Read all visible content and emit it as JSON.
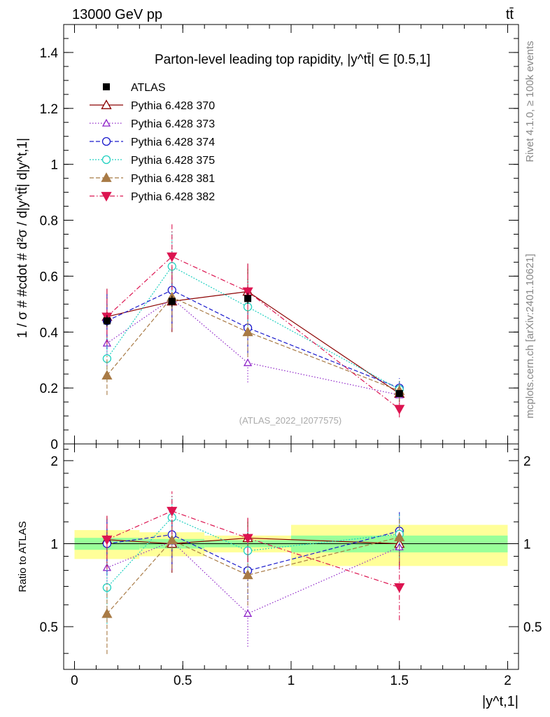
{
  "header": {
    "energy_label": "13000 GeV pp",
    "process_label": "tt̄"
  },
  "side_labels": {
    "rivet": "Rivet 4.1.0, ≥ 100k events",
    "mcplots": "mcplots.cern.ch [arXiv:2401.10621]"
  },
  "chart_data": {
    "type": "scatter",
    "title": "Parton-level leading top rapidity, |y^tt̄| ∈ [0.5,1]",
    "watermark": "(ATLAS_2022_I2077575)",
    "xlabel": "|y^t,1|",
    "ylabel": "1 / σ # #cdot # d²σ / d|y^tt̄| d|y^t,1|",
    "ratio_ylabel": "Ratio to ATLAS",
    "xlim": [
      -0.05,
      2.05
    ],
    "ylim": [
      0,
      1.5
    ],
    "ratio_ylim": [
      0.35,
      2.3
    ],
    "x_ticks": [
      "0",
      "0.5",
      "1",
      "1.5",
      "2"
    ],
    "y_ticks": [
      "0",
      "0.2",
      "0.4",
      "0.6",
      "0.8",
      "1",
      "1.2",
      "1.4"
    ],
    "ratio_ticks": [
      "0.5",
      "1",
      "2"
    ],
    "x": [
      0.15,
      0.45,
      0.8,
      1.5
    ],
    "bins": [
      [
        0,
        0.3
      ],
      [
        0.3,
        0.6
      ],
      [
        0.6,
        1.0
      ],
      [
        1.0,
        2.0
      ]
    ],
    "data": {
      "name": "ATLAS",
      "values": [
        0.44,
        0.51,
        0.52,
        0.18
      ],
      "errors": [
        0.02,
        0.02,
        0.02,
        0.01
      ]
    },
    "data_band_stat": [
      0.05,
      0.04,
      0.03,
      0.07
    ],
    "data_band_total": [
      0.12,
      0.1,
      0.07,
      0.17
    ],
    "series": [
      {
        "name": "Pythia 6.428 370",
        "color": "#8b0000",
        "marker": "triangle-open",
        "dash": "none",
        "values": [
          0.455,
          0.51,
          0.545,
          0.18
        ],
        "errors": [
          0.1,
          0.11,
          0.1,
          0.03
        ]
      },
      {
        "name": "Pythia 6.428 373",
        "color": "#8e24c8",
        "marker": "triangle-open-small",
        "dash": "1.5,2.5",
        "values": [
          0.36,
          0.52,
          0.29,
          0.175
        ],
        "errors": [
          0.08,
          0.11,
          0.07,
          0.03
        ]
      },
      {
        "name": "Pythia 6.428 374",
        "color": "#1a1acc",
        "marker": "circle-open",
        "dash": "6,3",
        "values": [
          0.44,
          0.55,
          0.415,
          0.2
        ],
        "errors": [
          0.1,
          0.12,
          0.09,
          0.035
        ]
      },
      {
        "name": "Pythia 6.428 375",
        "color": "#20d0c0",
        "marker": "circle-open",
        "dash": "2,2",
        "values": [
          0.305,
          0.635,
          0.49,
          0.195
        ],
        "errors": [
          0.08,
          0.13,
          0.1,
          0.035
        ]
      },
      {
        "name": "Pythia 6.428 381",
        "color": "#a87a45",
        "marker": "triangle-filled",
        "dash": "6,3",
        "values": [
          0.245,
          0.525,
          0.4,
          0.19
        ],
        "errors": [
          0.07,
          0.11,
          0.09,
          0.035
        ]
      },
      {
        "name": "Pythia 6.428 382",
        "color": "#dc1450",
        "marker": "triangle-down-filled",
        "dash": "7,3,1.5,3",
        "values": [
          0.455,
          0.67,
          0.545,
          0.125
        ],
        "errors": [
          0.1,
          0.12,
          0.1,
          0.03
        ]
      }
    ]
  }
}
